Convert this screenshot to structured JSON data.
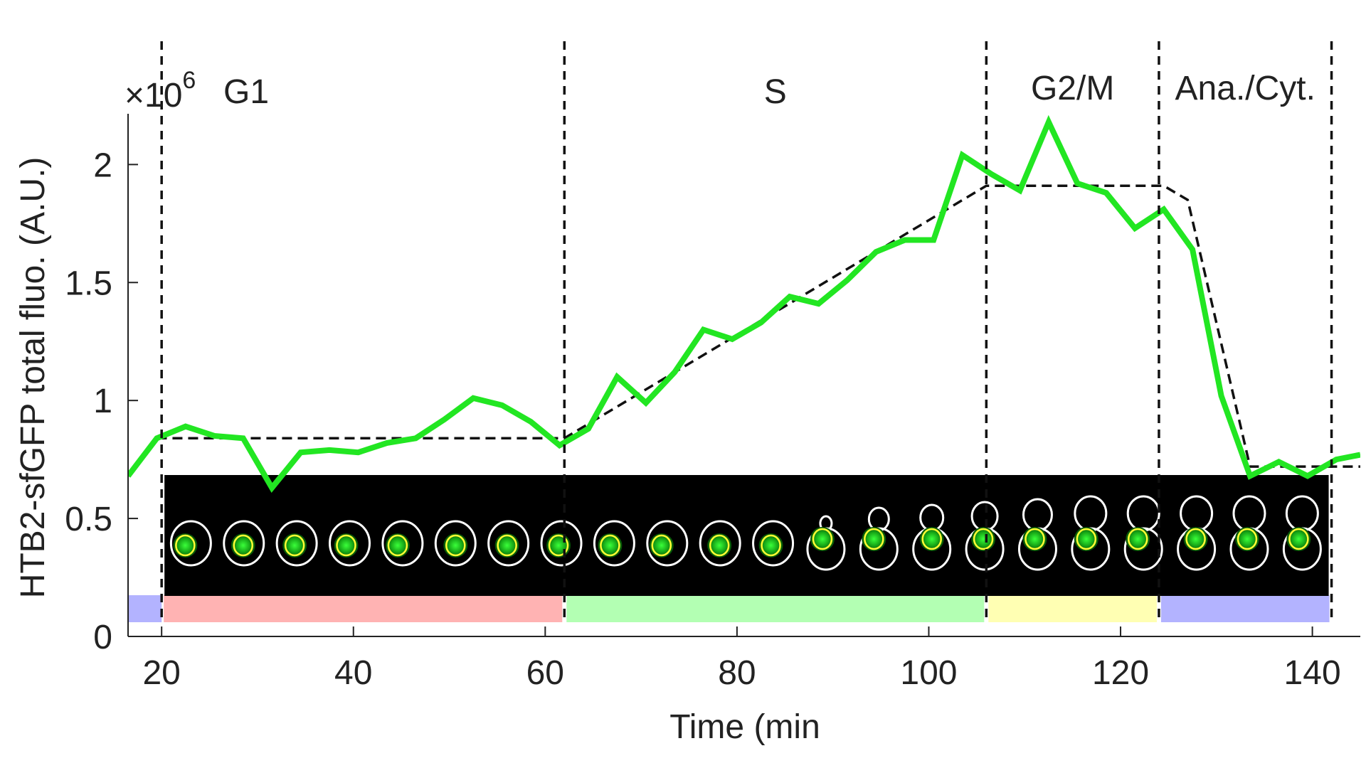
{
  "chart_data": {
    "type": "line",
    "xlabel": "Time (min",
    "ylabel": "HTB2-sfGFP total fluo. (A.U.)",
    "y_multiplier": "×10",
    "y_multiplier_exp": "6",
    "xlim": [
      16.5,
      145
    ],
    "ylim": [
      0,
      2.2
    ],
    "x_ticks": [
      20,
      40,
      60,
      80,
      100,
      120,
      140
    ],
    "y_ticks": [
      0,
      0.5,
      1,
      1.5,
      2
    ],
    "y_tick_labels": [
      "0",
      "0.5",
      "1",
      "1.5",
      "2"
    ],
    "grid": false,
    "colors": {
      "series": "#22e622",
      "fit": "#111111",
      "G1": "#ffb3b3",
      "S": "#b3ffb3",
      "G2M": "#ffffb3",
      "AnaCyt": "#b3b3ff"
    },
    "phase_boundaries": [
      20,
      62,
      106,
      124,
      142
    ],
    "phases": [
      {
        "id": "G1",
        "label": "G1",
        "start": 20,
        "end": 62
      },
      {
        "id": "S",
        "label": "S",
        "start": 62,
        "end": 106
      },
      {
        "id": "G2M",
        "label": "G2/M",
        "start": 106,
        "end": 124
      },
      {
        "id": "AnaCyt",
        "label": "Ana./Cyt.",
        "start": 124,
        "end": 142
      }
    ],
    "series": [
      {
        "x": [
          16.5,
          19.5,
          22.5,
          25.5,
          28.5,
          31.5,
          34.5,
          37.5,
          40.5,
          43.5,
          46.5,
          49.5,
          52.5,
          55.5,
          58.5,
          61.5,
          64.5,
          67.5,
          70.5,
          73.5,
          76.5,
          79.5,
          82.5,
          85.5,
          88.5,
          91.5,
          94.5,
          97.5,
          100.5,
          103.5,
          106.5,
          109.5,
          112.5,
          115.5,
          118.5,
          121.5,
          124.5,
          127.5,
          130.5,
          133.5,
          136.5,
          139.5,
          142.5,
          145
        ],
        "y": [
          0.68,
          0.84,
          0.89,
          0.85,
          0.84,
          0.63,
          0.78,
          0.79,
          0.78,
          0.82,
          0.84,
          0.92,
          1.01,
          0.98,
          0.91,
          0.81,
          0.88,
          1.1,
          0.99,
          1.12,
          1.3,
          1.26,
          1.33,
          1.44,
          1.41,
          1.51,
          1.63,
          1.68,
          1.68,
          2.04,
          1.96,
          1.89,
          2.18,
          1.92,
          1.88,
          1.73,
          1.81,
          1.64,
          1.02,
          0.68,
          0.74,
          0.68,
          0.75,
          0.77
        ]
      }
    ],
    "fit_line": {
      "x": [
        19.5,
        62,
        106,
        124.5,
        127,
        133.5,
        145
      ],
      "y": [
        0.84,
        0.84,
        1.91,
        1.91,
        1.85,
        0.72,
        0.72
      ]
    },
    "inset": {
      "description": "cell image strip",
      "x_range": [
        20,
        142
      ],
      "cell_count": 22
    },
    "pre_phase_bar": {
      "start": 16.5,
      "end": 20,
      "color": "#b3b3ff"
    }
  }
}
